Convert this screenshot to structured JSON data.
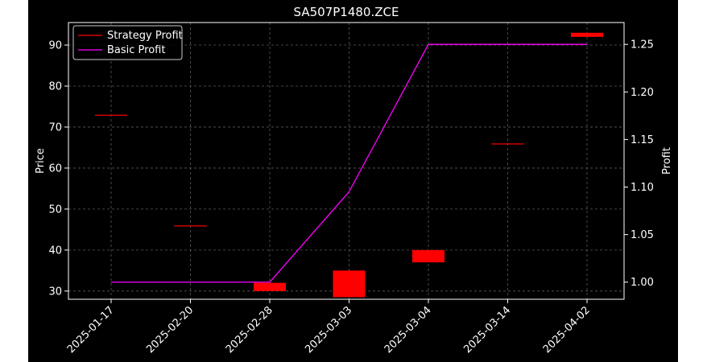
{
  "chart_data": {
    "type": "candlestick-with-line",
    "title": "SA507P1480.ZCE",
    "ylabel_left": "Price",
    "ylabel_right": "Profit",
    "xlabel": "",
    "categories": [
      "2025-01-17",
      "2025-02-20",
      "2025-02-28",
      "2025-03-03",
      "2025-03-04",
      "2025-03-14",
      "2025-04-02"
    ],
    "ylim_left": [
      28,
      95.5
    ],
    "yticks_left": [
      30,
      40,
      50,
      60,
      70,
      80,
      90
    ],
    "ylim_right": [
      0.982,
      1.273
    ],
    "yticks_right": [
      1.0,
      1.05,
      1.1,
      1.15,
      1.2,
      1.25
    ],
    "yticks_right_labels": [
      "1.00",
      "1.05",
      "1.10",
      "1.15",
      "1.20",
      "1.25"
    ],
    "grid": true,
    "legend_position": "top-left",
    "legend": [
      "Strategy Profit",
      "Basic Profit"
    ],
    "series": [
      {
        "name": "Strategy Profit",
        "axis": "left",
        "kind": "candlestick",
        "color": "#ff0000",
        "candles": [
          {
            "open": 73,
            "close": 73
          },
          {
            "open": 46,
            "close": 46
          },
          {
            "open": 32,
            "close": 30
          },
          {
            "open": 35,
            "close": 28.5
          },
          {
            "open": 40,
            "close": 37
          },
          {
            "open": 66,
            "close": 66
          },
          {
            "open": 93,
            "close": 92
          }
        ]
      },
      {
        "name": "Basic Profit",
        "axis": "right",
        "kind": "line",
        "color": "#ff00ff",
        "values": [
          1.0,
          1.0,
          1.0,
          1.095,
          1.25,
          1.25,
          1.25
        ]
      }
    ]
  }
}
